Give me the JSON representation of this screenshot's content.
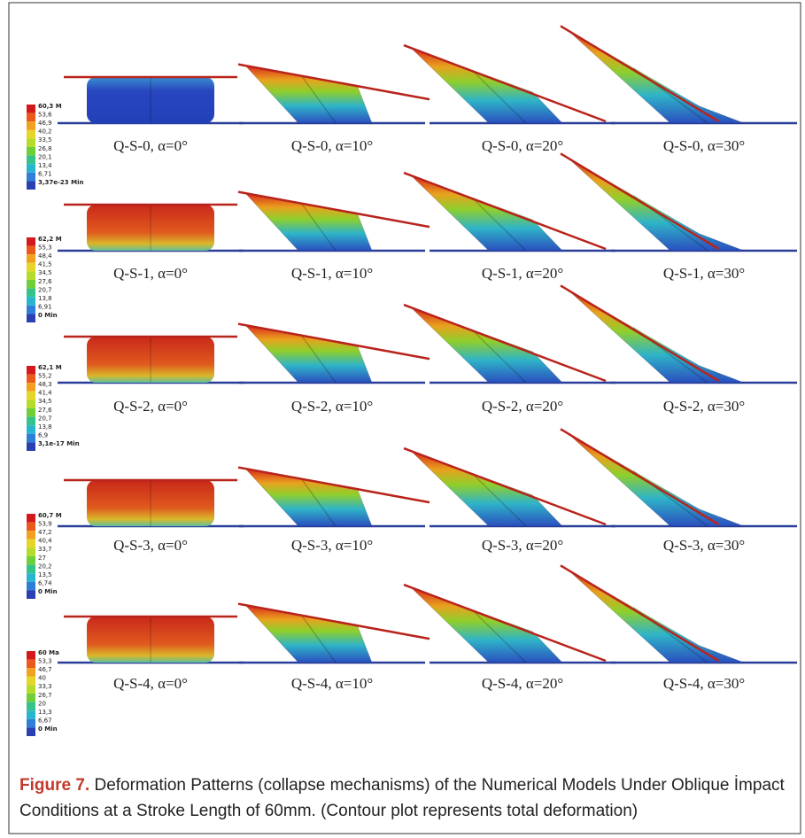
{
  "rows": [
    {
      "legend": [
        "60,3 M",
        "53,6",
        "46,9",
        "40,2",
        "33,5",
        "26,8",
        "20,1",
        "13,4",
        "6,71",
        "3,37e-23 Min"
      ],
      "captions": [
        "Q-S-0, α=0°",
        "Q-S-0, α=10°",
        "Q-S-0, α=20°",
        "Q-S-0, α=30°"
      ]
    },
    {
      "legend": [
        "62,2 M",
        "55,3",
        "48,4",
        "41,5",
        "34,5",
        "27,6",
        "20,7",
        "13,8",
        "6,91",
        "0 Min"
      ],
      "captions": [
        "Q-S-1, α=0°",
        "Q-S-1, α=10°",
        "Q-S-1, α=20°",
        "Q-S-1, α=30°"
      ]
    },
    {
      "legend": [
        "62,1 M",
        "55,2",
        "48,3",
        "41,4",
        "34,5",
        "27,6",
        "20,7",
        "13,8",
        "6,9",
        "3,1e-17 Min"
      ],
      "captions": [
        "Q-S-2, α=0°",
        "Q-S-2, α=10°",
        "Q-S-2, α=20°",
        "Q-S-2, α=30°"
      ]
    },
    {
      "legend": [
        "60,7 M",
        "53,9",
        "47,2",
        "40,4",
        "33,7",
        "27",
        "20,2",
        "13,5",
        "6,74",
        "0 Min"
      ],
      "captions": [
        "Q-S-3, α=0°",
        "Q-S-3, α=10°",
        "Q-S-3, α=20°",
        "Q-S-3, α=30°"
      ]
    },
    {
      "legend": [
        "60 Ma",
        "53,3",
        "46,7",
        "40",
        "33,3",
        "26,7",
        "20",
        "13,3",
        "6,67",
        "0 Min"
      ],
      "captions": [
        "Q-S-4, α=0°",
        "Q-S-4, α=10°",
        "Q-S-4, α=20°",
        "Q-S-4, α=30°"
      ]
    }
  ],
  "caption": {
    "label": "Figure 7.",
    "text": "Deformation Patterns (collapse mechanisms) of the Numerical Models Under Oblique İmpact Conditions at a Stroke Length of 60mm. (Contour plot represents total deformation)"
  }
}
